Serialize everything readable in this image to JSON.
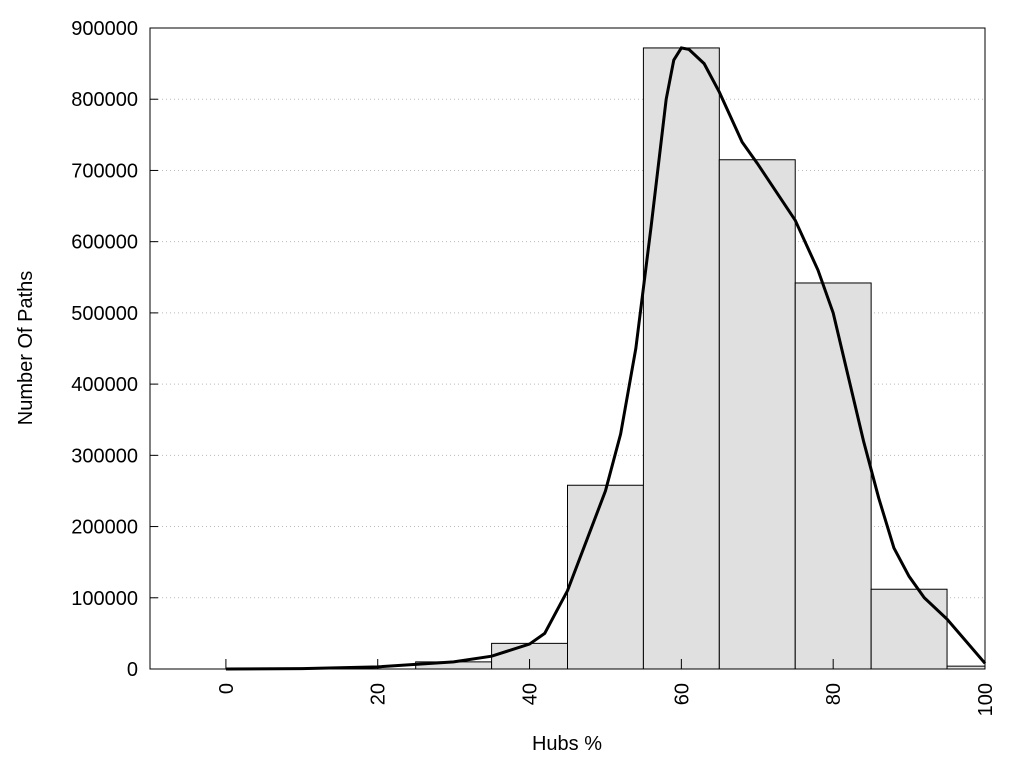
{
  "chart_data": {
    "type": "histogram",
    "xlabel": "Hubs %",
    "ylabel": "Number Of Paths",
    "bins": [
      25,
      35,
      45,
      55,
      65,
      75,
      85,
      95,
      100
    ],
    "values": [
      10000,
      36000,
      258000,
      872000,
      715000,
      542000,
      112000,
      4000
    ],
    "color": "#e0e0e0",
    "line": {
      "color": "#000000",
      "x": [
        0,
        10,
        20,
        30,
        35,
        40,
        42,
        45,
        50,
        52,
        54,
        56,
        58,
        59,
        60,
        61,
        63,
        65,
        68,
        70,
        75,
        78,
        80,
        82,
        84,
        86,
        88,
        90,
        92,
        95,
        100
      ],
      "values": [
        0,
        500,
        3000,
        10000,
        18000,
        35000,
        50000,
        110000,
        250000,
        330000,
        450000,
        620000,
        800000,
        855000,
        872000,
        870000,
        850000,
        810000,
        740000,
        710000,
        630000,
        560000,
        500000,
        410000,
        320000,
        240000,
        170000,
        130000,
        100000,
        70000,
        8000
      ]
    },
    "xlim": [
      -10,
      100
    ],
    "ylim": [
      0,
      900000
    ],
    "xticks": [
      0,
      20,
      40,
      60,
      80,
      100
    ],
    "yticks": [
      0,
      100000,
      200000,
      300000,
      400000,
      500000,
      600000,
      700000,
      800000,
      900000
    ],
    "grid": true
  }
}
